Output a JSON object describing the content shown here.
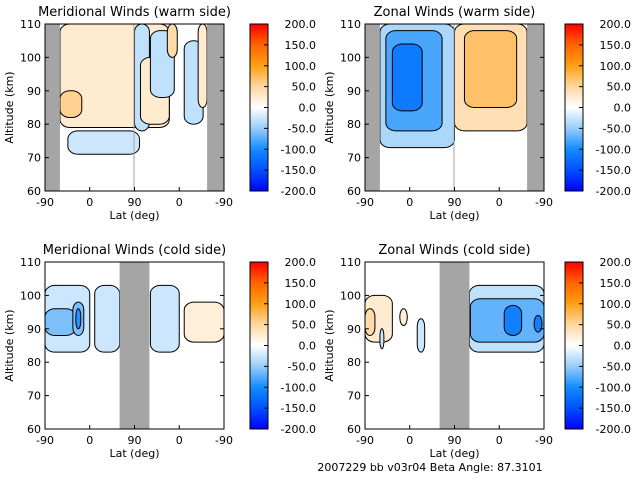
{
  "footer": "2007229 bb v03r04   Beta Angle: 87.3101",
  "colors": {
    "gap": "#a5a5a5",
    "axis": "#000000"
  },
  "chart_data": [
    {
      "type": "heatmap",
      "title": "Meridional Winds (warm side)",
      "xlabel": "Lat (deg)",
      "ylabel": "Altitude (km)",
      "xlim": [
        0,
        360
      ],
      "ylim": [
        60,
        110
      ],
      "xticks": [
        {
          "pos": 0,
          "label": "-90"
        },
        {
          "pos": 90,
          "label": "0"
        },
        {
          "pos": 180,
          "label": "90"
        },
        {
          "pos": 270,
          "label": "0"
        },
        {
          "pos": 360,
          "label": "-90"
        }
      ],
      "yticks": [
        {
          "pos": 60,
          "label": "60"
        },
        {
          "pos": 70,
          "label": "70"
        },
        {
          "pos": 80,
          "label": "80"
        },
        {
          "pos": 90,
          "label": "90"
        },
        {
          "pos": 100,
          "label": "100"
        },
        {
          "pos": 110,
          "label": "110"
        }
      ],
      "colorbar": {
        "range": [
          -200,
          200
        ],
        "ticks": [
          "200.0",
          "150.0",
          "100.0",
          "50.0",
          "0.0",
          "-50.0",
          "-100.0",
          "-150.0",
          "-200.0"
        ]
      },
      "gaps": [
        [
          0,
          30
        ],
        [
          178,
          180
        ],
        [
          326,
          360
        ]
      ],
      "regions": [
        {
          "x": [
            30,
            250
          ],
          "y": [
            79,
            110
          ],
          "value": 25
        },
        {
          "x": [
            30,
            74
          ],
          "y": [
            82,
            90
          ],
          "value": 55
        },
        {
          "x": [
            46,
            190
          ],
          "y": [
            71,
            78
          ],
          "value": -25
        },
        {
          "x": [
            180,
            210
          ],
          "y": [
            78,
            110
          ],
          "value": -30
        },
        {
          "x": [
            192,
            250
          ],
          "y": [
            80,
            100
          ],
          "value": 25
        },
        {
          "x": [
            212,
            260
          ],
          "y": [
            88,
            108
          ],
          "value": -30
        },
        {
          "x": [
            246,
            266
          ],
          "y": [
            100,
            110
          ],
          "value": 45
        },
        {
          "x": [
            280,
            318
          ],
          "y": [
            80,
            105
          ],
          "value": -30
        },
        {
          "x": [
            308,
            326
          ],
          "y": [
            85,
            110
          ],
          "value": 25
        }
      ]
    },
    {
      "type": "heatmap",
      "title": "Zonal Winds (warm side)",
      "xlabel": "Lat (deg)",
      "ylabel": "Altitude (km)",
      "xlim": [
        0,
        360
      ],
      "ylim": [
        60,
        110
      ],
      "xticks": [
        {
          "pos": 0,
          "label": "-90"
        },
        {
          "pos": 90,
          "label": "0"
        },
        {
          "pos": 180,
          "label": "90"
        },
        {
          "pos": 270,
          "label": "0"
        },
        {
          "pos": 360,
          "label": "-90"
        }
      ],
      "yticks": [
        {
          "pos": 60,
          "label": "60"
        },
        {
          "pos": 70,
          "label": "70"
        },
        {
          "pos": 80,
          "label": "80"
        },
        {
          "pos": 90,
          "label": "90"
        },
        {
          "pos": 100,
          "label": "100"
        },
        {
          "pos": 110,
          "label": "110"
        }
      ],
      "colorbar": {
        "range": [
          -200,
          200
        ],
        "ticks": [
          "200.0",
          "150.0",
          "100.0",
          "50.0",
          "0.0",
          "-50.0",
          "-100.0",
          "-150.0",
          "-200.0"
        ]
      },
      "gaps": [
        [
          0,
          30
        ],
        [
          178,
          180
        ],
        [
          326,
          360
        ]
      ],
      "regions": [
        {
          "x": [
            30,
            180
          ],
          "y": [
            73,
            110
          ],
          "value": -40
        },
        {
          "x": [
            42,
            155
          ],
          "y": [
            78,
            108
          ],
          "value": -80
        },
        {
          "x": [
            55,
            115
          ],
          "y": [
            84,
            104
          ],
          "value": -115
        },
        {
          "x": [
            180,
            326
          ],
          "y": [
            78,
            110
          ],
          "value": 40
        },
        {
          "x": [
            200,
            305
          ],
          "y": [
            85,
            108
          ],
          "value": 70
        }
      ]
    },
    {
      "type": "heatmap",
      "title": "Meridional Winds (cold side)",
      "xlabel": "Lat (deg)",
      "ylabel": "Altitude (km)",
      "xlim": [
        0,
        360
      ],
      "ylim": [
        60,
        110
      ],
      "xticks": [
        {
          "pos": 0,
          "label": "-90"
        },
        {
          "pos": 90,
          "label": "0"
        },
        {
          "pos": 180,
          "label": "90"
        },
        {
          "pos": 270,
          "label": "0"
        },
        {
          "pos": 360,
          "label": "-90"
        }
      ],
      "yticks": [
        {
          "pos": 60,
          "label": "60"
        },
        {
          "pos": 70,
          "label": "70"
        },
        {
          "pos": 80,
          "label": "80"
        },
        {
          "pos": 90,
          "label": "90"
        },
        {
          "pos": 100,
          "label": "100"
        },
        {
          "pos": 110,
          "label": "110"
        }
      ],
      "colorbar": {
        "range": [
          -200,
          200
        ],
        "ticks": [
          "200.0",
          "150.0",
          "100.0",
          "50.0",
          "0.0",
          "-50.0",
          "-100.0",
          "-150.0",
          "-200.0"
        ]
      },
      "gaps": [
        [
          150,
          210
        ]
      ],
      "regions": [
        {
          "x": [
            0,
            90
          ],
          "y": [
            83,
            103
          ],
          "value": -25
        },
        {
          "x": [
            0,
            62
          ],
          "y": [
            88,
            96
          ],
          "value": -60
        },
        {
          "x": [
            56,
            78
          ],
          "y": [
            88,
            98
          ],
          "value": -60
        },
        {
          "x": [
            62,
            72
          ],
          "y": [
            90,
            96
          ],
          "value": -95
        },
        {
          "x": [
            100,
            150
          ],
          "y": [
            83,
            103
          ],
          "value": -25
        },
        {
          "x": [
            212,
            270
          ],
          "y": [
            83,
            103
          ],
          "value": -25
        },
        {
          "x": [
            280,
            360
          ],
          "y": [
            86,
            98
          ],
          "value": 20
        }
      ]
    },
    {
      "type": "heatmap",
      "title": "Zonal Winds (cold side)",
      "xlabel": "Lat (deg)",
      "ylabel": "Altitude (km)",
      "xlim": [
        0,
        360
      ],
      "ylim": [
        60,
        110
      ],
      "xticks": [
        {
          "pos": 0,
          "label": "-90"
        },
        {
          "pos": 90,
          "label": "0"
        },
        {
          "pos": 180,
          "label": "90"
        },
        {
          "pos": 270,
          "label": "0"
        },
        {
          "pos": 360,
          "label": "-90"
        }
      ],
      "yticks": [
        {
          "pos": 60,
          "label": "60"
        },
        {
          "pos": 70,
          "label": "70"
        },
        {
          "pos": 80,
          "label": "80"
        },
        {
          "pos": 90,
          "label": "90"
        },
        {
          "pos": 100,
          "label": "100"
        },
        {
          "pos": 110,
          "label": "110"
        }
      ],
      "colorbar": {
        "range": [
          -200,
          200
        ],
        "ticks": [
          "200.0",
          "150.0",
          "100.0",
          "50.0",
          "0.0",
          "-50.0",
          "-100.0",
          "-150.0",
          "-200.0"
        ]
      },
      "gaps": [
        [
          150,
          210
        ]
      ],
      "regions": [
        {
          "x": [
            0,
            55
          ],
          "y": [
            86,
            100
          ],
          "value": 25
        },
        {
          "x": [
            0,
            20
          ],
          "y": [
            88,
            96
          ],
          "value": 45
        },
        {
          "x": [
            70,
            85
          ],
          "y": [
            91,
            96
          ],
          "value": 20
        },
        {
          "x": [
            30,
            38
          ],
          "y": [
            84,
            90
          ],
          "value": -25
        },
        {
          "x": [
            105,
            120
          ],
          "y": [
            83,
            93
          ],
          "value": -25
        },
        {
          "x": [
            210,
            360
          ],
          "y": [
            83,
            103
          ],
          "value": -30
        },
        {
          "x": [
            212,
            360
          ],
          "y": [
            86,
            99
          ],
          "value": -70
        },
        {
          "x": [
            280,
            315
          ],
          "y": [
            88,
            97
          ],
          "value": -110
        },
        {
          "x": [
            340,
            356
          ],
          "y": [
            89,
            94
          ],
          "value": -110
        }
      ]
    }
  ]
}
